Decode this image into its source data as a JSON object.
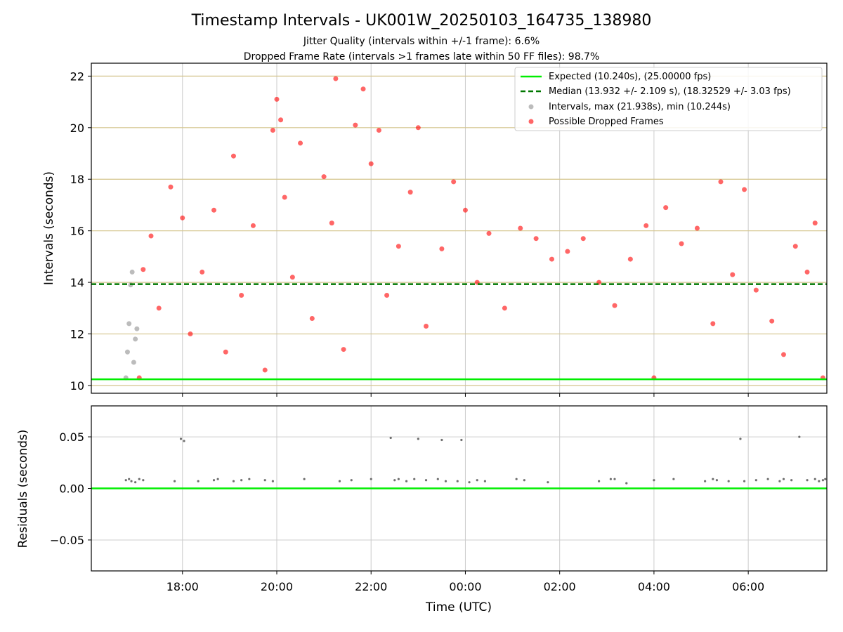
{
  "header": {
    "title": "Timestamp Intervals - UK001W_20250103_164735_138980",
    "subtitle1": "Jitter Quality (intervals within +/-1 frame): 6.6%",
    "subtitle2": "Dropped Frame Rate (intervals >1 frames late within 50 FF files): 98.7%"
  },
  "colors": {
    "expected": "#00ee00",
    "median": "#007700",
    "dropped": "#ff0000",
    "normal": "#909090",
    "residual": "#707070",
    "hgrid_top": "#d4c48c",
    "grid": "#cccccc"
  },
  "chart_data": [
    {
      "type": "scatter",
      "panel": "top",
      "ylabel": "Intervals (seconds)",
      "xlim": [
        "16:04",
        "07:40"
      ],
      "ylim": [
        9.7,
        22.5
      ],
      "yticks": [
        "10",
        "12",
        "14",
        "16",
        "18",
        "20",
        "22"
      ],
      "ytick_values": [
        10,
        12,
        14,
        16,
        18,
        20,
        22
      ],
      "grid": "on",
      "legend_position": "top-right",
      "legend": [
        "Expected (10.240s), (25.00000 fps)",
        "Median (13.932 +/- 2.109 s), (18.32529 +/- 3.03 fps)",
        "Intervals, max (21.938s), min (10.244s)",
        "Possible Dropped Frames"
      ],
      "expected_value": 10.24,
      "median_value": 13.932,
      "series": [
        {
          "name": "Possible Dropped Frames",
          "description_range": "approx. 17:00 to 07:40 UTC",
          "points": [
            [
              "17:05",
              10.3
            ],
            [
              "17:10",
              14.5
            ],
            [
              "17:20",
              15.8
            ],
            [
              "17:30",
              13.0
            ],
            [
              "17:45",
              17.7
            ],
            [
              "18:00",
              16.5
            ],
            [
              "18:10",
              12.0
            ],
            [
              "18:25",
              14.4
            ],
            [
              "18:40",
              16.8
            ],
            [
              "18:55",
              11.3
            ],
            [
              "19:05",
              18.9
            ],
            [
              "19:15",
              13.5
            ],
            [
              "19:30",
              16.2
            ],
            [
              "19:45",
              10.6
            ],
            [
              "19:55",
              19.9
            ],
            [
              "20:00",
              21.1
            ],
            [
              "20:05",
              20.3
            ],
            [
              "20:10",
              17.3
            ],
            [
              "20:20",
              14.2
            ],
            [
              "20:30",
              19.4
            ],
            [
              "20:45",
              12.6
            ],
            [
              "21:00",
              18.1
            ],
            [
              "21:10",
              16.3
            ],
            [
              "21:15",
              21.9
            ],
            [
              "21:25",
              11.4
            ],
            [
              "21:40",
              20.1
            ],
            [
              "21:50",
              21.5
            ],
            [
              "22:00",
              18.6
            ],
            [
              "22:10",
              19.9
            ],
            [
              "22:20",
              13.5
            ],
            [
              "22:35",
              15.4
            ],
            [
              "22:50",
              17.5
            ],
            [
              "23:00",
              20.0
            ],
            [
              "23:10",
              12.3
            ],
            [
              "23:30",
              15.3
            ],
            [
              "23:45",
              17.9
            ],
            [
              "00:00",
              16.8
            ],
            [
              "00:15",
              14.0
            ],
            [
              "00:30",
              15.9
            ],
            [
              "00:50",
              13.0
            ],
            [
              "01:10",
              16.1
            ],
            [
              "01:30",
              15.7
            ],
            [
              "01:50",
              14.9
            ],
            [
              "02:10",
              15.2
            ],
            [
              "02:30",
              15.7
            ],
            [
              "02:50",
              14.0
            ],
            [
              "03:10",
              13.1
            ],
            [
              "03:30",
              14.9
            ],
            [
              "03:50",
              16.2
            ],
            [
              "04:00",
              10.3
            ],
            [
              "04:15",
              16.9
            ],
            [
              "04:35",
              15.5
            ],
            [
              "04:55",
              16.1
            ],
            [
              "05:15",
              12.4
            ],
            [
              "05:25",
              17.9
            ],
            [
              "05:40",
              14.3
            ],
            [
              "05:55",
              17.6
            ],
            [
              "06:10",
              13.7
            ],
            [
              "06:30",
              12.5
            ],
            [
              "06:45",
              11.2
            ],
            [
              "07:00",
              15.4
            ],
            [
              "07:15",
              14.4
            ],
            [
              "07:25",
              16.3
            ],
            [
              "07:35",
              10.3
            ]
          ]
        },
        {
          "name": "Intervals",
          "description_range": "approx. 16:45 to 17:05 UTC",
          "points": [
            [
              "16:48",
              10.3
            ],
            [
              "16:50",
              11.3
            ],
            [
              "16:52",
              12.4
            ],
            [
              "16:54",
              13.9
            ],
            [
              "16:56",
              14.4
            ],
            [
              "16:58",
              10.9
            ],
            [
              "17:00",
              11.8
            ],
            [
              "17:02",
              12.2
            ]
          ]
        }
      ]
    },
    {
      "type": "scatter",
      "panel": "bottom",
      "xlabel": "Time (UTC)",
      "ylabel": "Residuals (seconds)",
      "xlim": [
        "16:04",
        "07:40"
      ],
      "ylim": [
        -0.08,
        0.08
      ],
      "xticks": [
        "18:00",
        "20:00",
        "22:00",
        "00:00",
        "02:00",
        "04:00",
        "06:00"
      ],
      "yticks": [
        "0.05",
        "0.00",
        "−0.05"
      ],
      "ytick_values": [
        0.05,
        0.0,
        -0.05
      ],
      "grid": "on",
      "expected_value": 0.0,
      "series": [
        {
          "name": "Residuals",
          "points": [
            [
              "16:48",
              0.008
            ],
            [
              "16:52",
              0.009
            ],
            [
              "16:55",
              0.007
            ],
            [
              "17:00",
              0.006
            ],
            [
              "17:05",
              0.009
            ],
            [
              "17:10",
              0.008
            ],
            [
              "17:50",
              0.007
            ],
            [
              "17:58",
              0.048
            ],
            [
              "18:02",
              0.046
            ],
            [
              "18:20",
              0.007
            ],
            [
              "18:40",
              0.008
            ],
            [
              "18:45",
              0.009
            ],
            [
              "19:05",
              0.007
            ],
            [
              "19:15",
              0.008
            ],
            [
              "19:25",
              0.009
            ],
            [
              "19:45",
              0.008
            ],
            [
              "19:55",
              0.007
            ],
            [
              "20:35",
              0.009
            ],
            [
              "21:20",
              0.007
            ],
            [
              "21:35",
              0.008
            ],
            [
              "22:00",
              0.009
            ],
            [
              "22:25",
              0.049
            ],
            [
              "22:30",
              0.008
            ],
            [
              "22:35",
              0.009
            ],
            [
              "22:45",
              0.007
            ],
            [
              "22:55",
              0.009
            ],
            [
              "23:00",
              0.048
            ],
            [
              "23:10",
              0.008
            ],
            [
              "23:25",
              0.009
            ],
            [
              "23:30",
              0.047
            ],
            [
              "23:35",
              0.007
            ],
            [
              "23:50",
              0.007
            ],
            [
              "23:55",
              0.047
            ],
            [
              "00:05",
              0.006
            ],
            [
              "00:15",
              0.008
            ],
            [
              "00:25",
              0.007
            ],
            [
              "01:05",
              0.009
            ],
            [
              "01:15",
              0.008
            ],
            [
              "01:45",
              0.006
            ],
            [
              "02:50",
              0.007
            ],
            [
              "03:05",
              0.009
            ],
            [
              "03:10",
              0.009
            ],
            [
              "03:25",
              0.005
            ],
            [
              "04:00",
              0.008
            ],
            [
              "04:25",
              0.009
            ],
            [
              "05:05",
              0.007
            ],
            [
              "05:15",
              0.009
            ],
            [
              "05:20",
              0.008
            ],
            [
              "05:35",
              0.007
            ],
            [
              "05:50",
              0.048
            ],
            [
              "05:55",
              0.007
            ],
            [
              "06:10",
              0.008
            ],
            [
              "06:25",
              0.009
            ],
            [
              "06:40",
              0.007
            ],
            [
              "06:45",
              0.009
            ],
            [
              "06:55",
              0.008
            ],
            [
              "07:05",
              0.05
            ],
            [
              "07:15",
              0.008
            ],
            [
              "07:25",
              0.009
            ],
            [
              "07:30",
              0.007
            ],
            [
              "07:35",
              0.008
            ],
            [
              "07:38",
              0.009
            ]
          ]
        }
      ]
    }
  ]
}
